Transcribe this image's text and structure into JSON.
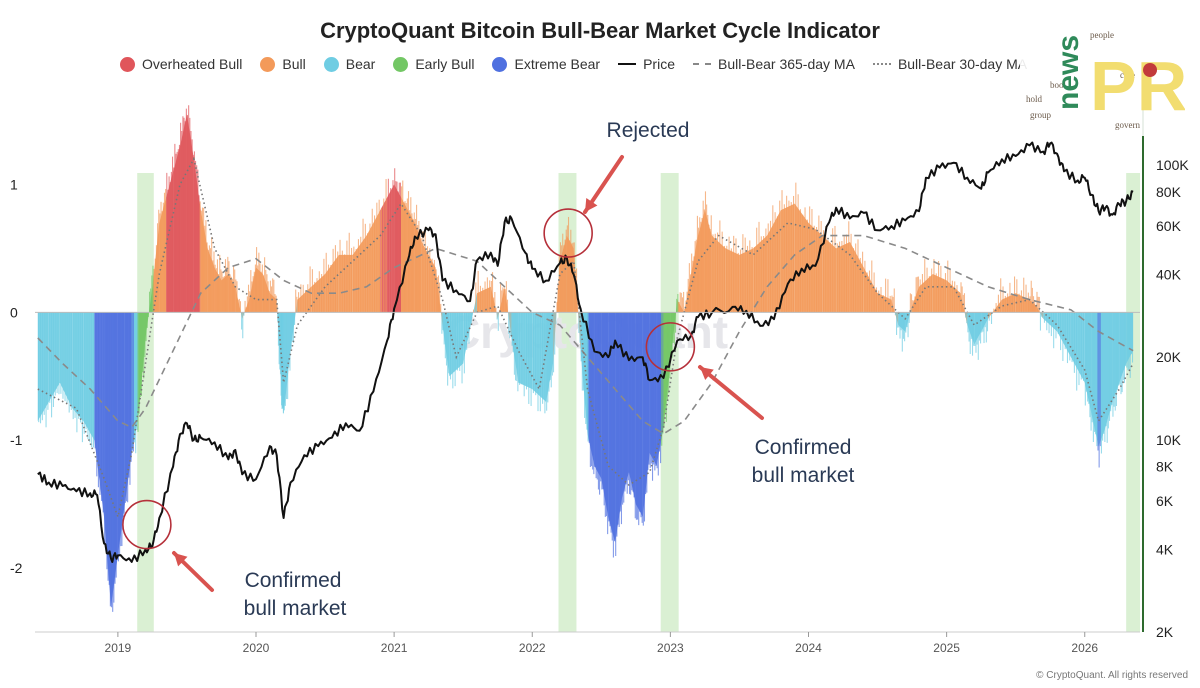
{
  "chart_data": {
    "type": "area",
    "title": "CryptoQuant Bitcoin Bull-Bear Market Cycle Indicator",
    "legend": [
      {
        "label": "Overheated Bull",
        "color": "#e0565b",
        "kind": "dot"
      },
      {
        "label": "Bull",
        "color": "#f39a5a",
        "kind": "dot"
      },
      {
        "label": "Bear",
        "color": "#6fcde3",
        "kind": "dot"
      },
      {
        "label": "Early Bull",
        "color": "#73c765",
        "kind": "dot"
      },
      {
        "label": "Extreme Bear",
        "color": "#4f70e0",
        "kind": "dot"
      },
      {
        "label": "Price",
        "color": "#111111",
        "kind": "solid"
      },
      {
        "label": "Bull-Bear 365-day MA",
        "color": "#888888",
        "kind": "dash"
      },
      {
        "label": "Bull-Bear 30-day MA",
        "color": "#888888",
        "kind": "dot-line"
      }
    ],
    "x_tick_labels": [
      "2019",
      "2020",
      "2021",
      "2022",
      "2023",
      "2024",
      "2025",
      "2026"
    ],
    "left_axis": {
      "ticks": [
        1,
        0,
        -1,
        -2
      ],
      "range": [
        -2.5,
        1.7
      ]
    },
    "right_axis": {
      "scale": "log",
      "tick_labels": [
        "100K",
        "80K",
        "60K",
        "40K",
        "20K",
        "10K",
        "8K",
        "6K",
        "4K",
        "2K"
      ],
      "tick_values": [
        100000,
        80000,
        60000,
        40000,
        20000,
        10000,
        8000,
        6000,
        4000,
        2000
      ],
      "range": [
        2000,
        180000
      ]
    },
    "x_range": [
      2018.4,
      2026.4
    ],
    "indicator": [
      [
        2018.42,
        -0.85
      ],
      [
        2018.5,
        -0.7
      ],
      [
        2018.58,
        -0.55
      ],
      [
        2018.67,
        -0.75
      ],
      [
        2018.75,
        -0.85
      ],
      [
        2018.83,
        -1.0
      ],
      [
        2018.9,
        -1.6
      ],
      [
        2018.95,
        -2.3
      ],
      [
        2019.0,
        -1.9
      ],
      [
        2019.05,
        -1.5
      ],
      [
        2019.1,
        -1.1
      ],
      [
        2019.15,
        -0.8
      ],
      [
        2019.2,
        -0.2
      ],
      [
        2019.25,
        0.2
      ],
      [
        2019.3,
        0.7
      ],
      [
        2019.35,
        0.9
      ],
      [
        2019.4,
        1.1
      ],
      [
        2019.45,
        1.3
      ],
      [
        2019.5,
        1.55
      ],
      [
        2019.55,
        1.2
      ],
      [
        2019.6,
        0.8
      ],
      [
        2019.65,
        0.5
      ],
      [
        2019.7,
        0.35
      ],
      [
        2019.75,
        0.25
      ],
      [
        2019.8,
        0.3
      ],
      [
        2019.85,
        0.2
      ],
      [
        2019.9,
        -0.05
      ],
      [
        2019.95,
        0.1
      ],
      [
        2020.0,
        0.35
      ],
      [
        2020.05,
        0.3
      ],
      [
        2020.1,
        0.15
      ],
      [
        2020.15,
        0.1
      ],
      [
        2020.18,
        -0.5
      ],
      [
        2020.2,
        -0.8
      ],
      [
        2020.25,
        -0.3
      ],
      [
        2020.3,
        0.1
      ],
      [
        2020.4,
        0.2
      ],
      [
        2020.5,
        0.3
      ],
      [
        2020.6,
        0.45
      ],
      [
        2020.7,
        0.45
      ],
      [
        2020.8,
        0.6
      ],
      [
        2020.9,
        0.8
      ],
      [
        2021.0,
        1.0
      ],
      [
        2021.05,
        0.9
      ],
      [
        2021.1,
        0.8
      ],
      [
        2021.15,
        0.7
      ],
      [
        2021.2,
        0.55
      ],
      [
        2021.3,
        0.35
      ],
      [
        2021.35,
        -0.1
      ],
      [
        2021.4,
        -0.5
      ],
      [
        2021.5,
        -0.4
      ],
      [
        2021.6,
        0.15
      ],
      [
        2021.7,
        0.2
      ],
      [
        2021.75,
        -0.05
      ],
      [
        2021.8,
        0.2
      ],
      [
        2021.85,
        -0.2
      ],
      [
        2021.9,
        -0.55
      ],
      [
        2022.0,
        -0.6
      ],
      [
        2022.1,
        -0.7
      ],
      [
        2022.15,
        -0.4
      ],
      [
        2022.2,
        0.4
      ],
      [
        2022.25,
        0.6
      ],
      [
        2022.3,
        0.5
      ],
      [
        2022.35,
        -0.3
      ],
      [
        2022.4,
        -0.95
      ],
      [
        2022.45,
        -1.2
      ],
      [
        2022.5,
        -1.3
      ],
      [
        2022.55,
        -1.6
      ],
      [
        2022.6,
        -1.8
      ],
      [
        2022.65,
        -1.45
      ],
      [
        2022.7,
        -1.25
      ],
      [
        2022.75,
        -1.5
      ],
      [
        2022.8,
        -1.6
      ],
      [
        2022.85,
        -1.1
      ],
      [
        2022.9,
        -1.2
      ],
      [
        2022.95,
        -0.9
      ],
      [
        2023.0,
        -0.4
      ],
      [
        2023.05,
        0.1
      ],
      [
        2023.1,
        0.0
      ],
      [
        2023.15,
        0.3
      ],
      [
        2023.2,
        0.6
      ],
      [
        2023.25,
        0.8
      ],
      [
        2023.3,
        0.6
      ],
      [
        2023.4,
        0.5
      ],
      [
        2023.5,
        0.45
      ],
      [
        2023.6,
        0.5
      ],
      [
        2023.7,
        0.6
      ],
      [
        2023.8,
        0.8
      ],
      [
        2023.9,
        0.85
      ],
      [
        2024.0,
        0.7
      ],
      [
        2024.1,
        0.6
      ],
      [
        2024.2,
        0.5
      ],
      [
        2024.3,
        0.55
      ],
      [
        2024.4,
        0.35
      ],
      [
        2024.5,
        0.15
      ],
      [
        2024.6,
        0.1
      ],
      [
        2024.65,
        -0.1
      ],
      [
        2024.7,
        -0.15
      ],
      [
        2024.75,
        0.05
      ],
      [
        2024.8,
        0.2
      ],
      [
        2024.9,
        0.3
      ],
      [
        2025.0,
        0.25
      ],
      [
        2025.1,
        0.15
      ],
      [
        2025.15,
        -0.1
      ],
      [
        2025.2,
        -0.25
      ],
      [
        2025.25,
        -0.15
      ],
      [
        2025.3,
        -0.05
      ],
      [
        2025.4,
        0.1
      ],
      [
        2025.5,
        0.15
      ],
      [
        2025.6,
        0.1
      ],
      [
        2025.65,
        0.05
      ],
      [
        2025.7,
        -0.05
      ],
      [
        2025.8,
        -0.15
      ],
      [
        2025.9,
        -0.35
      ],
      [
        2026.0,
        -0.55
      ],
      [
        2026.05,
        -0.8
      ],
      [
        2026.1,
        -1.05
      ],
      [
        2026.15,
        -0.9
      ],
      [
        2026.2,
        -0.7
      ],
      [
        2026.25,
        -0.55
      ],
      [
        2026.3,
        -0.4
      ],
      [
        2026.35,
        -0.3
      ]
    ],
    "regime_colors": {
      "overheated_bull": "#e0565b",
      "bull": "#f39a5a",
      "bear": "#6fcde3",
      "early_bull": "#73c765",
      "extreme_bear": "#4f70e0"
    },
    "price": [
      [
        2018.42,
        7500
      ],
      [
        2018.5,
        7000
      ],
      [
        2018.6,
        6800
      ],
      [
        2018.7,
        6500
      ],
      [
        2018.8,
        6400
      ],
      [
        2018.85,
        6300
      ],
      [
        2018.9,
        4200
      ],
      [
        2018.95,
        3700
      ],
      [
        2019.0,
        3800
      ],
      [
        2019.1,
        3600
      ],
      [
        2019.2,
        4000
      ],
      [
        2019.25,
        4100
      ],
      [
        2019.3,
        5200
      ],
      [
        2019.4,
        8000
      ],
      [
        2019.45,
        10500
      ],
      [
        2019.5,
        11500
      ],
      [
        2019.55,
        10000
      ],
      [
        2019.6,
        10200
      ],
      [
        2019.7,
        9800
      ],
      [
        2019.8,
        8500
      ],
      [
        2019.85,
        9200
      ],
      [
        2019.9,
        7500
      ],
      [
        2020.0,
        7200
      ],
      [
        2020.1,
        9500
      ],
      [
        2020.15,
        8800
      ],
      [
        2020.2,
        5200
      ],
      [
        2020.25,
        7000
      ],
      [
        2020.35,
        8800
      ],
      [
        2020.45,
        9500
      ],
      [
        2020.55,
        10200
      ],
      [
        2020.65,
        11500
      ],
      [
        2020.75,
        10800
      ],
      [
        2020.85,
        15000
      ],
      [
        2020.95,
        23000
      ],
      [
        2021.0,
        30000
      ],
      [
        2021.1,
        45000
      ],
      [
        2021.15,
        55000
      ],
      [
        2021.25,
        58000
      ],
      [
        2021.3,
        56000
      ],
      [
        2021.35,
        38000
      ],
      [
        2021.45,
        35000
      ],
      [
        2021.55,
        32000
      ],
      [
        2021.6,
        45000
      ],
      [
        2021.7,
        48000
      ],
      [
        2021.75,
        43000
      ],
      [
        2021.8,
        62000
      ],
      [
        2021.85,
        64000
      ],
      [
        2021.95,
        48000
      ],
      [
        2022.0,
        42000
      ],
      [
        2022.1,
        38000
      ],
      [
        2022.2,
        44000
      ],
      [
        2022.25,
        46000
      ],
      [
        2022.3,
        40000
      ],
      [
        2022.35,
        30000
      ],
      [
        2022.45,
        21000
      ],
      [
        2022.55,
        20000
      ],
      [
        2022.6,
        23000
      ],
      [
        2022.7,
        19500
      ],
      [
        2022.8,
        20000
      ],
      [
        2022.85,
        16500
      ],
      [
        2022.95,
        16800
      ],
      [
        2023.05,
        23000
      ],
      [
        2023.15,
        24000
      ],
      [
        2023.2,
        28000
      ],
      [
        2023.3,
        29000
      ],
      [
        2023.45,
        30500
      ],
      [
        2023.55,
        29500
      ],
      [
        2023.65,
        26000
      ],
      [
        2023.75,
        27500
      ],
      [
        2023.85,
        37000
      ],
      [
        2023.95,
        42000
      ],
      [
        2024.05,
        43000
      ],
      [
        2024.15,
        62000
      ],
      [
        2024.2,
        70000
      ],
      [
        2024.3,
        64000
      ],
      [
        2024.4,
        67000
      ],
      [
        2024.5,
        58000
      ],
      [
        2024.6,
        60000
      ],
      [
        2024.7,
        63000
      ],
      [
        2024.8,
        68000
      ],
      [
        2024.85,
        90000
      ],
      [
        2024.95,
        98000
      ],
      [
        2025.05,
        102000
      ],
      [
        2025.15,
        90000
      ],
      [
        2025.25,
        82000
      ],
      [
        2025.3,
        94000
      ],
      [
        2025.4,
        105000
      ],
      [
        2025.5,
        108000
      ],
      [
        2025.6,
        118000
      ],
      [
        2025.7,
        112000
      ],
      [
        2025.75,
        120000
      ],
      [
        2025.8,
        110000
      ],
      [
        2025.85,
        95000
      ],
      [
        2025.95,
        88000
      ],
      [
        2026.0,
        90000
      ],
      [
        2026.05,
        78000
      ],
      [
        2026.1,
        68000
      ],
      [
        2026.15,
        70000
      ],
      [
        2026.2,
        66000
      ],
      [
        2026.25,
        72000
      ],
      [
        2026.3,
        74000
      ],
      [
        2026.35,
        80000
      ]
    ],
    "ma365": [
      [
        2018.42,
        -0.2
      ],
      [
        2018.6,
        -0.4
      ],
      [
        2018.8,
        -0.6
      ],
      [
        2019.0,
        -0.85
      ],
      [
        2019.1,
        -0.9
      ],
      [
        2019.2,
        -0.75
      ],
      [
        2019.4,
        -0.3
      ],
      [
        2019.6,
        0.15
      ],
      [
        2019.8,
        0.35
      ],
      [
        2020.0,
        0.42
      ],
      [
        2020.2,
        0.25
      ],
      [
        2020.4,
        0.15
      ],
      [
        2020.6,
        0.15
      ],
      [
        2020.8,
        0.2
      ],
      [
        2021.0,
        0.35
      ],
      [
        2021.3,
        0.5
      ],
      [
        2021.6,
        0.4
      ],
      [
        2021.8,
        0.2
      ],
      [
        2022.0,
        0.0
      ],
      [
        2022.2,
        -0.1
      ],
      [
        2022.4,
        -0.35
      ],
      [
        2022.6,
        -0.6
      ],
      [
        2022.8,
        -0.85
      ],
      [
        2022.95,
        -0.95
      ],
      [
        2023.1,
        -0.85
      ],
      [
        2023.3,
        -0.55
      ],
      [
        2023.5,
        -0.15
      ],
      [
        2023.7,
        0.2
      ],
      [
        2023.9,
        0.45
      ],
      [
        2024.1,
        0.6
      ],
      [
        2024.4,
        0.6
      ],
      [
        2024.7,
        0.5
      ],
      [
        2025.0,
        0.35
      ],
      [
        2025.3,
        0.2
      ],
      [
        2025.6,
        0.1
      ],
      [
        2025.9,
        0.02
      ],
      [
        2026.1,
        -0.15
      ],
      [
        2026.35,
        -0.3
      ]
    ],
    "ma30": [
      [
        2018.42,
        -0.6
      ],
      [
        2018.7,
        -0.75
      ],
      [
        2018.9,
        -1.3
      ],
      [
        2019.0,
        -1.6
      ],
      [
        2019.1,
        -1.1
      ],
      [
        2019.2,
        -0.4
      ],
      [
        2019.3,
        0.3
      ],
      [
        2019.45,
        1.0
      ],
      [
        2019.55,
        1.2
      ],
      [
        2019.7,
        0.5
      ],
      [
        2019.85,
        0.2
      ],
      [
        2020.0,
        0.1
      ],
      [
        2020.15,
        0.1
      ],
      [
        2020.2,
        -0.55
      ],
      [
        2020.3,
        -0.1
      ],
      [
        2020.5,
        0.2
      ],
      [
        2020.7,
        0.4
      ],
      [
        2020.9,
        0.6
      ],
      [
        2021.05,
        0.85
      ],
      [
        2021.2,
        0.6
      ],
      [
        2021.35,
        0.1
      ],
      [
        2021.45,
        -0.35
      ],
      [
        2021.6,
        0.0
      ],
      [
        2021.75,
        0.05
      ],
      [
        2021.9,
        -0.3
      ],
      [
        2022.05,
        -0.6
      ],
      [
        2022.2,
        0.3
      ],
      [
        2022.3,
        0.4
      ],
      [
        2022.4,
        -0.6
      ],
      [
        2022.55,
        -1.2
      ],
      [
        2022.7,
        -1.35
      ],
      [
        2022.85,
        -1.25
      ],
      [
        2022.95,
        -0.9
      ],
      [
        2023.05,
        -0.2
      ],
      [
        2023.2,
        0.4
      ],
      [
        2023.35,
        0.6
      ],
      [
        2023.6,
        0.45
      ],
      [
        2023.85,
        0.7
      ],
      [
        2024.05,
        0.65
      ],
      [
        2024.3,
        0.45
      ],
      [
        2024.5,
        0.15
      ],
      [
        2024.7,
        -0.05
      ],
      [
        2024.85,
        0.2
      ],
      [
        2025.05,
        0.2
      ],
      [
        2025.2,
        -0.1
      ],
      [
        2025.4,
        0.05
      ],
      [
        2025.6,
        0.1
      ],
      [
        2025.8,
        -0.1
      ],
      [
        2026.0,
        -0.45
      ],
      [
        2026.1,
        -0.85
      ],
      [
        2026.25,
        -0.6
      ],
      [
        2026.35,
        -0.4
      ]
    ],
    "highlight_bands": [
      [
        2019.14,
        2019.26
      ],
      [
        2022.19,
        2022.32
      ],
      [
        2022.93,
        2023.06
      ],
      [
        2026.3,
        2026.4
      ]
    ],
    "annotations": [
      {
        "lines": [
          "Rejected"
        ],
        "x": 2022.25,
        "y": 0.55
      },
      {
        "lines": [
          "Confirmed",
          "bull market"
        ],
        "x": 2019.2,
        "y": -1.65
      },
      {
        "lines": [
          "Confirmed",
          "bull market"
        ],
        "x": 2023.0,
        "y": -0.28
      }
    ],
    "watermark": "CryptoQuant",
    "copyright": "© CryptoQuant. All rights reserved"
  },
  "logo": {
    "words": [
      "news",
      "PR"
    ]
  }
}
